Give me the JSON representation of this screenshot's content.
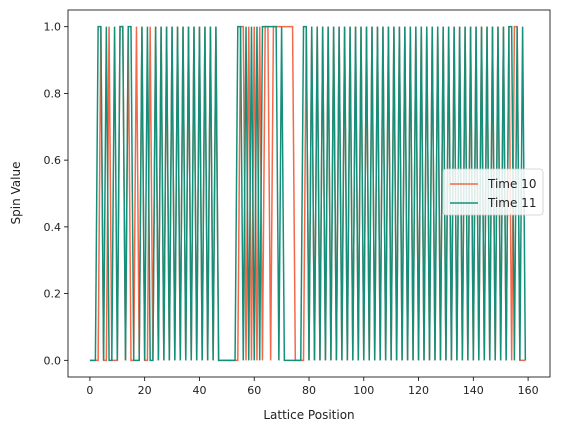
{
  "chart_data": {
    "type": "line",
    "title": "",
    "xlabel": "Lattice Position",
    "ylabel": "Spin Value",
    "xlim": [
      -8,
      168
    ],
    "ylim": [
      -0.05,
      1.05
    ],
    "xticks": [
      0,
      20,
      40,
      60,
      80,
      100,
      120,
      140,
      160
    ],
    "yticks": [
      0.0,
      0.2,
      0.4,
      0.6,
      0.8,
      1.0
    ],
    "ytick_labels": [
      "0.0",
      "0.2",
      "0.4",
      "0.6",
      "0.8",
      "1.0"
    ],
    "grid": false,
    "legend_position": "center-right",
    "series": [
      {
        "name": "Time 10",
        "color": "#f4694a",
        "x_start": 0,
        "values": [
          0,
          0,
          0,
          0,
          1,
          0,
          0,
          1,
          0,
          0,
          0,
          1,
          1,
          0,
          1,
          0,
          0,
          1,
          0,
          1,
          0,
          0,
          1,
          0,
          1,
          0,
          1,
          0,
          1,
          0,
          1,
          0,
          1,
          0,
          1,
          0,
          1,
          0,
          1,
          0,
          1,
          0,
          1,
          0,
          1,
          0,
          1,
          0,
          0,
          0,
          0,
          0,
          0,
          0,
          0,
          1,
          1,
          0,
          1,
          0,
          1,
          0,
          1,
          0,
          1,
          1,
          0,
          1,
          1,
          1,
          1,
          1,
          1,
          1,
          1,
          0,
          0,
          0,
          0,
          1,
          0,
          1,
          0,
          1,
          0,
          1,
          0,
          1,
          0,
          1,
          0,
          1,
          0,
          1,
          0,
          1,
          0,
          1,
          0,
          1,
          0,
          1,
          0,
          1,
          0,
          1,
          0,
          1,
          0,
          1,
          0,
          1,
          0,
          1,
          0,
          1,
          0,
          1,
          0,
          1,
          0,
          1,
          0,
          1,
          0,
          1,
          0,
          1,
          0,
          1,
          0,
          1,
          0,
          1,
          0,
          1,
          0,
          1,
          0,
          1,
          0,
          1,
          0,
          1,
          0,
          1,
          0,
          1,
          0,
          1,
          0,
          1,
          0,
          1,
          0,
          1,
          1,
          0,
          0,
          0
        ]
      },
      {
        "name": "Time 11",
        "color": "#14907a",
        "x_start": 0,
        "values": [
          0,
          0,
          0,
          1,
          1,
          0,
          1,
          0,
          0,
          1,
          0,
          1,
          1,
          0,
          1,
          1,
          0,
          0,
          0,
          1,
          0,
          1,
          0,
          0,
          1,
          0,
          1,
          0,
          1,
          0,
          1,
          0,
          1,
          0,
          1,
          0,
          1,
          0,
          1,
          0,
          1,
          0,
          1,
          0,
          1,
          0,
          1,
          0,
          0,
          0,
          0,
          0,
          0,
          0,
          1,
          1,
          0,
          1,
          0,
          1,
          0,
          1,
          0,
          1,
          1,
          1,
          1,
          1,
          1,
          0,
          1,
          0,
          0,
          0,
          0,
          0,
          0,
          0,
          1,
          1,
          0,
          1,
          0,
          1,
          0,
          1,
          0,
          1,
          0,
          1,
          0,
          1,
          0,
          1,
          0,
          1,
          0,
          1,
          0,
          1,
          0,
          1,
          0,
          1,
          0,
          1,
          0,
          1,
          0,
          1,
          0,
          1,
          0,
          1,
          0,
          1,
          0,
          1,
          0,
          1,
          0,
          1,
          0,
          1,
          0,
          1,
          0,
          1,
          0,
          1,
          0,
          1,
          0,
          1,
          0,
          1,
          0,
          1,
          0,
          1,
          0,
          1,
          0,
          1,
          0,
          1,
          0,
          1,
          0,
          1,
          0,
          1,
          0,
          1,
          1,
          0,
          1,
          0,
          1,
          0
        ]
      }
    ]
  }
}
